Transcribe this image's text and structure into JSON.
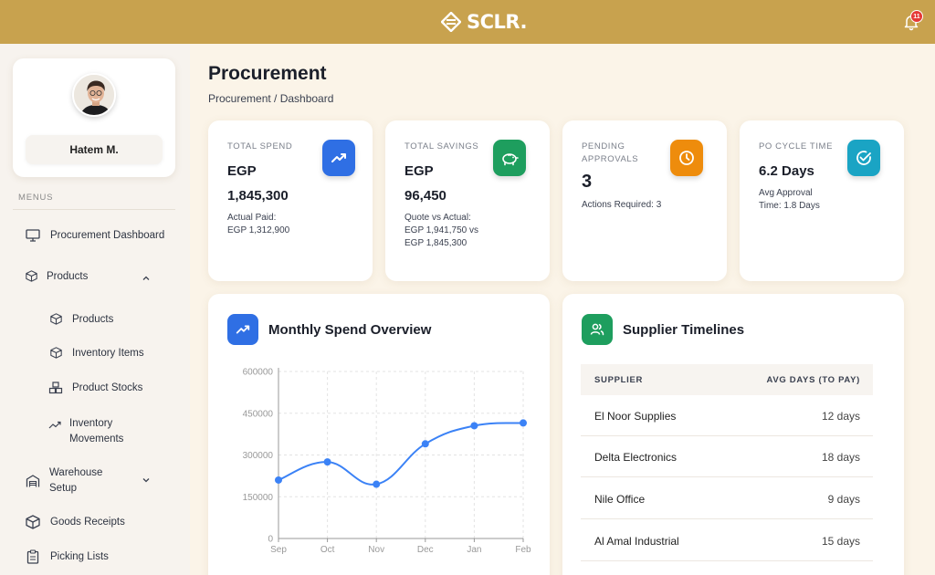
{
  "app": {
    "logo_text": "SCLR.",
    "notifications_count": "11"
  },
  "profile": {
    "name": "Hatem M."
  },
  "sidebar": {
    "menus_label": "MENUS",
    "items": [
      {
        "label": "Procurement Dashboard",
        "icon": "monitor-icon"
      },
      {
        "label": "Products",
        "icon": "box-icon",
        "expanded": true
      },
      {
        "label": "Products",
        "icon": "box-icon"
      },
      {
        "label": "Inventory Items",
        "icon": "box-icon"
      },
      {
        "label": "Product Stocks",
        "icon": "boxes-icon"
      },
      {
        "label_line1": "Inventory",
        "label_line2": "Movements",
        "icon": "trend-icon"
      },
      {
        "label_line1": "Warehouse",
        "label_line2": "Setup",
        "icon": "warehouse-icon"
      },
      {
        "label": "Goods Receipts",
        "icon": "box-icon"
      },
      {
        "label": "Picking Lists",
        "icon": "clipboard-icon"
      }
    ]
  },
  "header": {
    "title": "Procurement",
    "breadcrumb": "Procurement / Dashboard"
  },
  "kpis": [
    {
      "label": "TOTAL SPEND",
      "value1": "EGP",
      "value2": "1,845,300",
      "sub1": "Actual Paid:",
      "sub2": "EGP 1,312,900",
      "icon": "trend-up-icon",
      "color": "#2f6fe4"
    },
    {
      "label": "TOTAL SAVINGS",
      "value1": "EGP",
      "value2": "96,450",
      "sub1": "Quote vs Actual:",
      "sub2": "EGP 1,941,750 vs",
      "sub3": "EGP 1,845,300",
      "icon": "piggy-bank-icon",
      "color": "#1e9e5e"
    },
    {
      "label1": "PENDING",
      "label2": "APPROVALS",
      "value1": "3",
      "sub1": "Actions Required: 3",
      "icon": "clock-icon",
      "color": "#ee8c0c"
    },
    {
      "label": "PO CYCLE TIME",
      "value1": "6.2 Days",
      "sub1": "Avg Approval",
      "sub2": "Time: 1.8 Days",
      "icon": "check-circle-icon",
      "color": "#1aa4c4"
    }
  ],
  "spend_chart": {
    "title": "Monthly Spend Overview",
    "icon": "trend-up-icon"
  },
  "chart_data": {
    "type": "line",
    "title": "Monthly Spend Overview",
    "categories": [
      "Sep",
      "Oct",
      "Nov",
      "Dec",
      "Jan",
      "Feb"
    ],
    "values": [
      210000,
      275000,
      195000,
      340000,
      405000,
      415000
    ],
    "ylim": [
      0,
      600000
    ],
    "yticks": [
      "0",
      "150000",
      "300000",
      "450000",
      "600000"
    ],
    "grid": true,
    "color": "#3b82f6"
  },
  "suppliers": {
    "title": "Supplier Timelines",
    "icon": "users-icon",
    "col_supplier": "SUPPLIER",
    "col_days": "AVG DAYS (TO PAY)",
    "rows": [
      {
        "name": "El Noor Supplies",
        "days": "12 days"
      },
      {
        "name": "Delta Electronics",
        "days": "18 days"
      },
      {
        "name": "Nile Office",
        "days": "9 days"
      },
      {
        "name": "Al Amal Industrial",
        "days": "15 days"
      }
    ]
  }
}
